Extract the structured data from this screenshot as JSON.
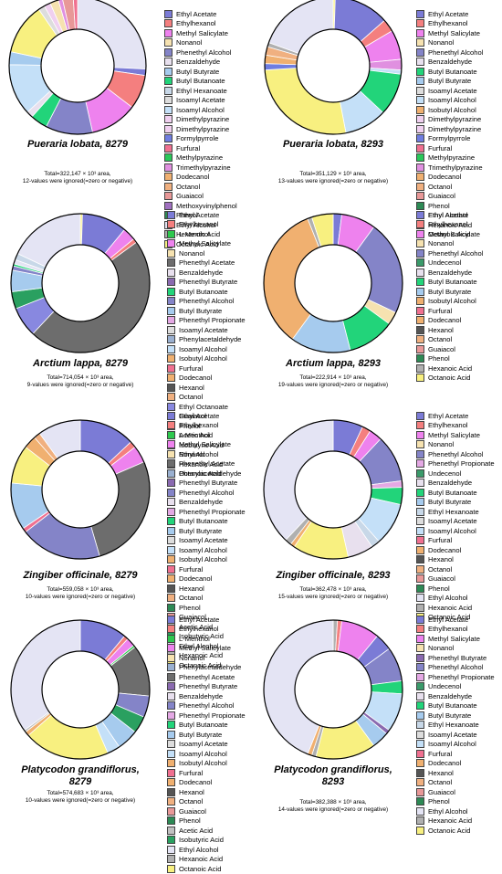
{
  "colors": {
    "Ethyl Acetate": "#7b7bd6",
    "Ethylhexanol": "#f47f7f",
    "L-Menthol": "#2ec84e",
    "Methyl Salicylate": "#ee82ee",
    "Nonanol": "#f6e2b0",
    "Phenethyl Alcohol": "#8484c8",
    "Phenethyl Acetate": "#6d6d6d",
    "Phenethyl Butyrate": "#8a6ab0",
    "Phenethyl Propionate": "#e4a8e4",
    "Phenylacetaldehyde": "#9ab0d0",
    "Benzaldehyde": "#e8e0ee",
    "Butyl Butyrate": "#a6cbee",
    "Butyl Butanoate": "#22d47a",
    "Ethyl Hexanoate": "#c8d8e8",
    "Ethyl Octanoate": "#8888e0",
    "Isoamyl Acetate": "#dddddd",
    "Isoamyl Alcohol": "#c4e0f8",
    "Isobutyl Alcohol": "#f0b070",
    "Dimethylpyrazine": "#f0d0f0",
    "Trimethylpyrazine": "#e090e0",
    "Formylpyrrole": "#6f7de0",
    "Methylpyrazine": "#2ac85a",
    "Furfural": "#f07090",
    "Dodecanol": "#f0b070",
    "Undecenol": "#3a9a6a",
    "Octanol": "#f0b080",
    "Guaiacol": "#e89898",
    "Methoxyvinylphenol": "#a070c0",
    "Phenol": "#2d8a55",
    "Hexanol": "#555555",
    "Acetic Acid": "#c0c0c0",
    "Isobutyric Acid": "#2aa060",
    "Ethyl Alcohol": "#e4e4f4",
    "Hexanoic Acid": "#b0b0b0",
    "Octanoic Acid": "#f8f080"
  },
  "panels": [
    {
      "title": [
        "Pueraria lobata, 8279"
      ],
      "total": "Total=322,147 × 10³ area,",
      "ignored": "12-values were ignored(=zero or negative)",
      "legend": [
        "Ethyl Acetate",
        "Ethylhexanol",
        "Methyl Salicylate",
        "Nonanol",
        "Phenethyl Alcohol",
        "Benzaldehyde",
        "Butyl Butyrate",
        "Butyl Butanoate",
        "Ethyl Hexanoate",
        "Isoamyl Acetate",
        "Isoamyl Alcohol",
        "Dimethylpyrazine",
        "Dimethylpyrazine",
        "Formylpyrrole",
        "Furfural",
        "Methylpyrazine",
        "Trimethylpyrazine",
        "Dodecanol",
        "Octanol",
        "Guaiacol",
        "Methoxyvinylphenol",
        "Phenol",
        "Ethyl Alcohol",
        "Hexanoic Acid",
        "Octanoic Acid"
      ],
      "slices": [
        [
          "Ethyl Alcohol",
          25.5
        ],
        [
          "Ethyl Acetate",
          1.5
        ],
        [
          "Ethylhexanol",
          8
        ],
        [
          "Methyl Salicylate",
          11
        ],
        [
          "Phenethyl Alcohol",
          11
        ],
        [
          "Butyl Butanoate",
          4
        ],
        [
          "Benzaldehyde",
          1.5
        ],
        [
          "Isoamyl Alcohol",
          12
        ],
        [
          "Butyl Butyrate",
          3
        ],
        [
          "Octanoic Acid",
          12
        ],
        [
          "Isoamyl Acetate",
          1.5
        ],
        [
          "Dimethylpyrazine",
          1.5
        ],
        [
          "Nonanol",
          2
        ],
        [
          "Trimethylpyrazine",
          1
        ],
        [
          "Guaiacol",
          2.5
        ],
        [
          "Furfural",
          1
        ]
      ]
    },
    {
      "title": [
        "Pueraria lobata, 8293"
      ],
      "total": "Total=351,129 × 10³ area,",
      "ignored": "13-values were ignored(=zero or negative)",
      "legend": [
        "Ethyl Acetate",
        "Ethylhexanol",
        "Methyl Salicylate",
        "Nonanol",
        "Phenethyl Alcohol",
        "Benzaldehyde",
        "Butyl Butanoate",
        "Butyl Butyrate",
        "Isoamyl Acetate",
        "Isoamyl Alcohol",
        "Isobutyl Alcohol",
        "Dimethylpyrazine",
        "Dimethylpyrazine",
        "Formylpyrrole",
        "Furfural",
        "Methylpyrazine",
        "Trimethylpyrazine",
        "Dodecanol",
        "Octanol",
        "Guaiacol",
        "Phenol",
        "Ethyl Alcohol",
        "Hexanoic Acid",
        "Octanoic Acid"
      ],
      "slices": [
        [
          "Octanoic Acid",
          0.5
        ],
        [
          "Ethyl Acetate",
          13
        ],
        [
          "Ethylhexanol",
          3
        ],
        [
          "Methyl Salicylate",
          7
        ],
        [
          "Trimethylpyrazine",
          2.5
        ],
        [
          "Isoamyl Alcohol",
          1
        ],
        [
          "Butyl Butanoate",
          10
        ],
        [
          "Isoamyl Alcohol",
          10
        ],
        [
          "Octanoic Acid",
          27
        ],
        [
          "Formylpyrrole",
          1.5
        ],
        [
          "Dodecanol",
          2
        ],
        [
          "Octanol",
          2
        ],
        [
          "Hexanoic Acid",
          1
        ],
        [
          "Ethyl Alcohol",
          19.5
        ]
      ]
    },
    {
      "title": [
        "Arctium lappa, 8279"
      ],
      "total": "Total=714,054 × 10³ area,",
      "ignored": "9-values were ignored(=zero or negative)",
      "legend": [
        "Ethyl Acetate",
        "Ethylhexanol",
        "L-Menthol",
        "Methyl Salicylate",
        "Nonanol",
        "Phenethyl Acetate",
        "Benzaldehyde",
        "Phenethyl Butyrate",
        "Butyl Butanoate",
        "Phenethyl Alcohol",
        "Butyl Butyrate",
        "Phenethyl Propionate",
        "Isoamyl Acetate",
        "Phenylacetaldehyde",
        "Isoamyl Alcohol",
        "Isobutyl Alcohol",
        "Furfural",
        "Dodecanol",
        "Hexanol",
        "Octanol",
        "Ethyl Octanoate",
        "Guaiacol",
        "Phenol",
        "Acetic Acid",
        "Isobutyric Acid",
        "Ethyl Alcohol",
        "Hexanoic Acid",
        "Octanoic Acid"
      ],
      "slices": [
        [
          "Octanoic Acid",
          0.5
        ],
        [
          "Ethyl Acetate",
          10.5
        ],
        [
          "Methyl Salicylate",
          3
        ],
        [
          "Ethylhexanol",
          1
        ],
        [
          "Phenethyl Acetate",
          47
        ],
        [
          "Ethyl Octanoate",
          7
        ],
        [
          "Isobutyric Acid",
          4
        ],
        [
          "Butyl Butyrate",
          5
        ],
        [
          "Phenethyl Alcohol",
          1
        ],
        [
          "Butyl Butanoate",
          0.5
        ],
        [
          "Ethyl Alcohol",
          1
        ],
        [
          "Ethyl Hexanoate",
          1.5
        ],
        [
          "Ethyl Alcohol",
          18
        ]
      ]
    },
    {
      "title": [
        "Arctium lappa, 8293"
      ],
      "total": "Total=222,914 × 10³ area,",
      "ignored": "19-values were ignored(=zero or negative)",
      "legend": [
        "Ethyl Acetate",
        "Ethylhexanol",
        "Methyl Salicylate",
        "Nonanol",
        "Phenethyl Alcohol",
        "Undecenol",
        "Benzaldehyde",
        "Butyl Butanoate",
        "Butyl Butyrate",
        "Isobutyl Alcohol",
        "Furfural",
        "Dodecanol",
        "Hexanol",
        "Octanol",
        "Guaiacol",
        "Phenol",
        "Hexanoic Acid",
        "Octanoic Acid"
      ],
      "slices": [
        [
          "Ethyl Acetate",
          2
        ],
        [
          "Methyl Salicylate",
          8
        ],
        [
          "Phenethyl Alcohol",
          22
        ],
        [
          "Nonanol",
          3
        ],
        [
          "Butyl Butanoate",
          11
        ],
        [
          "Butyl Butyrate",
          14
        ],
        [
          "Isobutyl Alcohol",
          34
        ],
        [
          "Hexanoic Acid",
          1
        ],
        [
          "Octanoic Acid",
          5
        ]
      ]
    },
    {
      "title": [
        "Zingiber officinale, 8279"
      ],
      "total": "Total=559,058 × 10³ area,",
      "ignored": "10-values were ignored(=zero or negative)",
      "legend": [
        "Ethyl Acetate",
        "Ethylhexanol",
        "L-Menthol",
        "Methyl Salicylate",
        "Nonanol",
        "Phenethyl Acetate",
        "Phenylacetaldehyde",
        "Phenethyl Butyrate",
        "Phenethyl Alcohol",
        "Benzaldehyde",
        "Phenethyl Propionate",
        "Butyl Butanoate",
        "Butyl Butyrate",
        "Isoamyl Acetate",
        "Isoamyl Alcohol",
        "Isobutyl Alcohol",
        "Furfural",
        "Dodecanol",
        "Hexanol",
        "Octanol",
        "Phenol",
        "Guaiacol",
        "Acetic Acid",
        "Isobutyric Acid",
        "Ethyl Alcohol",
        "Hexanoic Acid",
        "Octanoic Acid"
      ],
      "slices": [
        [
          "Ethyl Acetate",
          13
        ],
        [
          "Ethylhexanol",
          1.5
        ],
        [
          "Methyl Salicylate",
          4
        ],
        [
          "Phenethyl Acetate",
          27
        ],
        [
          "Phenethyl Alcohol",
          19
        ],
        [
          "Furfural",
          1
        ],
        [
          "Butyl Butyrate",
          11
        ],
        [
          "Octanoic Acid",
          9
        ],
        [
          "Dodecanol",
          3
        ],
        [
          "Octanol",
          1.5
        ],
        [
          "Ethyl Alcohol",
          10
        ]
      ]
    },
    {
      "title": [
        "Zingiber officinale, 8293"
      ],
      "total": "Total=362,478 × 10³ area,",
      "ignored": "15-values were ignored(=zero or negative)",
      "legend": [
        "Ethyl Acetate",
        "Ethylhexanol",
        "Methyl Salicylate",
        "Nonanol",
        "Phenethyl Alcohol",
        "Phenethyl Propionate",
        "Undecenol",
        "Benzaldehyde",
        "Butyl Butanoate",
        "Butyl Butyrate",
        "Ethyl Hexanoate",
        "Isoamyl Acetate",
        "Isoamyl Alcohol",
        "Furfural",
        "Dodecanol",
        "Hexanol",
        "Octanol",
        "Guaiacol",
        "Phenol",
        "Ethyl Alcohol",
        "Hexanoic Acid",
        "Octanoic Acid"
      ],
      "slices": [
        [
          "Ethyl Acetate",
          7
        ],
        [
          "Ethylhexanol",
          2
        ],
        [
          "Methyl Salicylate",
          3
        ],
        [
          "Phenethyl Alcohol",
          11
        ],
        [
          "Phenethyl Propionate",
          1.5
        ],
        [
          "Butyl Butanoate",
          4
        ],
        [
          "Isoamyl Alcohol",
          10
        ],
        [
          "Ethyl Hexanoate",
          2
        ],
        [
          "Benzaldehyde",
          6
        ],
        [
          "Octanoic Acid",
          13
        ],
        [
          "Dodecanol",
          1
        ],
        [
          "Hexanoic Acid",
          1.5
        ],
        [
          "Ethyl Alcohol",
          38
        ]
      ]
    },
    {
      "title": [
        "Platycodon grandiflorus,",
        "8279"
      ],
      "total": "Total=574,683 × 10³ area,",
      "ignored": "10-values were ignored(=zero or negative)",
      "legend": [
        "Ethyl Acetate",
        "Ethylhexanol",
        "L-Menthol",
        "Methyl Salicylate",
        "Nonanol",
        "Phenylacetaldehyde",
        "Phenethyl Acetate",
        "Phenethyl Butyrate",
        "Benzaldehyde",
        "Phenethyl Alcohol",
        "Phenethyl Propionate",
        "Butyl Butanoate",
        "Butyl Butyrate",
        "Isoamyl Acetate",
        "Isoamyl Alcohol",
        "Isobutyl Alcohol",
        "Furfural",
        "Dodecanol",
        "Hexanol",
        "Octanol",
        "Guaiacol",
        "Phenol",
        "Acetic Acid",
        "Isobutyric Acid",
        "Ethyl Alcohol",
        "Hexanoic Acid",
        "Octanoic Acid"
      ],
      "slices": [
        [
          "Ethyl Acetate",
          11
        ],
        [
          "Ethylhexanol",
          1
        ],
        [
          "Methyl Salicylate",
          2
        ],
        [
          "L-Menthol",
          0.5
        ],
        [
          "Phenethyl Acetate",
          12
        ],
        [
          "Phenethyl Alcohol",
          5
        ],
        [
          "Isobutyric Acid",
          4
        ],
        [
          "Butyl Butyrate",
          5
        ],
        [
          "Isoamyl Alcohol",
          3
        ],
        [
          "Octanoic Acid",
          20
        ],
        [
          "Dodecanol",
          1
        ],
        [
          "Acetic Acid",
          0.5
        ],
        [
          "Ethyl Alcohol",
          35
        ]
      ]
    },
    {
      "title": [
        "Platycodon grandiflorus,",
        "8293"
      ],
      "total": "Total=382,388 × 10³ area,",
      "ignored": "14-values were ignored(=zero or negative)",
      "legend": [
        "Ethyl Acetate",
        "Ethylhexanol",
        "Methyl Salicylate",
        "Nonanol",
        "Phenethyl Butyrate",
        "Phenethyl Alcohol",
        "Phenethyl Propionate",
        "Undecenol",
        "Benzaldehyde",
        "Butyl Butanoate",
        "Butyl Butyrate",
        "Ethyl Hexanoate",
        "Isoamyl Acetate",
        "Isoamyl Alcohol",
        "Furfural",
        "Dodecanol",
        "Hexanol",
        "Octanol",
        "Guaiacol",
        "Phenol",
        "Ethyl Alcohol",
        "Hexanoic Acid",
        "Octanoic Acid"
      ],
      "slices": [
        [
          "Hexanoic Acid",
          1
        ],
        [
          "Ethylhexanol",
          1
        ],
        [
          "Methyl Salicylate",
          9
        ],
        [
          "Ethyl Acetate",
          4
        ],
        [
          "Phenethyl Alcohol",
          8
        ],
        [
          "Butyl Butanoate",
          3
        ],
        [
          "Isoamyl Alcohol",
          9
        ],
        [
          "Phenethyl Butyrate",
          1
        ],
        [
          "Butyl Butyrate",
          4
        ],
        [
          "Octanoic Acid",
          14
        ],
        [
          "Hexanoic Acid",
          1
        ],
        [
          "Dodecanol",
          1
        ],
        [
          "Ethyl Alcohol",
          44
        ]
      ]
    }
  ]
}
